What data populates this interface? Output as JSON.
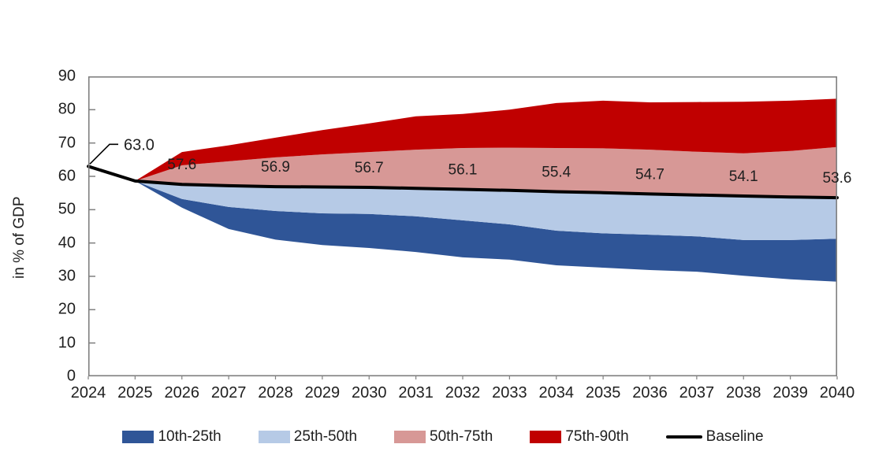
{
  "chart_data": {
    "type": "area",
    "title": "",
    "ylabel": "in % of GDP",
    "xlabel": "",
    "ylim": [
      0,
      90
    ],
    "yticks": [
      0,
      10,
      20,
      30,
      40,
      50,
      60,
      70,
      80,
      90
    ],
    "x": [
      2024,
      2025,
      2026,
      2027,
      2028,
      2029,
      2030,
      2031,
      2032,
      2033,
      2034,
      2035,
      2036,
      2037,
      2038,
      2039,
      2040
    ],
    "grid": false,
    "legend_position": "bottom",
    "baseline": {
      "name": "Baseline",
      "color": "#000000",
      "years": [
        2024,
        2025,
        2026,
        2027,
        2028,
        2029,
        2030,
        2031,
        2032,
        2033,
        2034,
        2035,
        2036,
        2037,
        2038,
        2039,
        2040
      ],
      "values": [
        63.0,
        58.6,
        57.6,
        57.2,
        56.9,
        56.8,
        56.7,
        56.4,
        56.1,
        55.8,
        55.4,
        55.1,
        54.7,
        54.4,
        54.1,
        53.8,
        53.6
      ]
    },
    "percentiles": {
      "years": [
        2025,
        2026,
        2027,
        2028,
        2029,
        2030,
        2031,
        2032,
        2033,
        2034,
        2035,
        2036,
        2037,
        2038,
        2039,
        2040
      ],
      "p10": [
        58.6,
        50.6,
        44.2,
        41.0,
        39.4,
        38.5,
        37.3,
        35.7,
        35.0,
        33.3,
        32.6,
        31.9,
        31.4,
        30.2,
        29.1,
        28.4
      ],
      "p25": [
        58.6,
        53.2,
        50.8,
        49.6,
        48.9,
        48.7,
        48.0,
        46.8,
        45.6,
        43.7,
        42.9,
        42.5,
        42.0,
        40.9,
        40.9,
        41.3
      ],
      "p50": [
        58.6,
        57.6,
        57.2,
        56.9,
        56.8,
        56.7,
        56.4,
        56.1,
        55.8,
        55.4,
        55.1,
        54.7,
        54.4,
        54.1,
        53.8,
        53.6
      ],
      "p75": [
        58.6,
        63.3,
        64.5,
        65.7,
        66.6,
        67.3,
        68.0,
        68.5,
        68.6,
        68.5,
        68.4,
        68.0,
        67.4,
        66.9,
        67.6,
        68.8
      ],
      "p90": [
        58.6,
        67.3,
        69.3,
        71.6,
        73.9,
        75.9,
        78.0,
        78.7,
        80.0,
        82.0,
        82.7,
        82.2,
        82.3,
        82.4,
        82.7,
        83.3
      ]
    },
    "bands": [
      {
        "name": "10th-25th",
        "lower": "p10",
        "upper": "p25",
        "color": "#2F5597"
      },
      {
        "name": "25th-50th",
        "lower": "p25",
        "upper": "p50",
        "color": "#B6CAE6"
      },
      {
        "name": "50th-75th",
        "lower": "p50",
        "upper": "p75",
        "color": "#D79896"
      },
      {
        "name": "75th-90th",
        "lower": "p75",
        "upper": "p90",
        "color": "#C00000"
      }
    ],
    "point_labels": [
      {
        "year": 2026,
        "label": "57.6"
      },
      {
        "year": 2028,
        "label": "56.9"
      },
      {
        "year": 2030,
        "label": "56.7"
      },
      {
        "year": 2032,
        "label": "56.1"
      },
      {
        "year": 2034,
        "label": "55.4"
      },
      {
        "year": 2036,
        "label": "54.7"
      },
      {
        "year": 2038,
        "label": "54.1"
      },
      {
        "year": 2040,
        "label": "53.6"
      }
    ],
    "callout": {
      "year": 2024,
      "value": 63.0,
      "label": "63.0"
    },
    "legend": [
      {
        "label": "10th-25th",
        "color": "#2F5597",
        "type": "box"
      },
      {
        "label": "25th-50th",
        "color": "#B6CAE6",
        "type": "box"
      },
      {
        "label": "50th-75th",
        "color": "#D79896",
        "type": "box"
      },
      {
        "label": "75th-90th",
        "color": "#C00000",
        "type": "box"
      },
      {
        "label": "Baseline",
        "color": "#000000",
        "type": "line"
      }
    ],
    "colors": {
      "plot_border": "#7F7F7F",
      "tick": "#808080",
      "text": "#1f1f1f",
      "baseline": "#000000"
    }
  }
}
